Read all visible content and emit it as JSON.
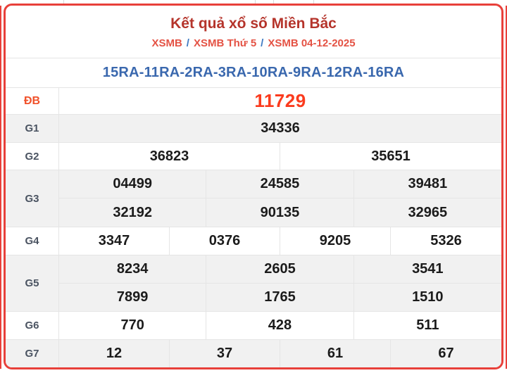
{
  "header": {
    "title": "Kết quả xổ số Miền Bắc",
    "breadcrumb": [
      {
        "label": "XSMB"
      },
      {
        "label": "XSMB Thứ 5"
      },
      {
        "label": "XSMB 04-12-2025"
      }
    ],
    "separator": "/"
  },
  "signs_line": "15RA-11RA-2RA-3RA-10RA-9RA-12RA-16RA",
  "results": {
    "rows": [
      {
        "label": "ĐB",
        "special": true,
        "shaded": false,
        "prizes": [
          [
            "11729"
          ]
        ]
      },
      {
        "label": "G1",
        "special": false,
        "shaded": true,
        "prizes": [
          [
            "34336"
          ]
        ]
      },
      {
        "label": "G2",
        "special": false,
        "shaded": false,
        "prizes": [
          [
            "36823",
            "35651"
          ]
        ]
      },
      {
        "label": "G3",
        "special": false,
        "shaded": true,
        "prizes": [
          [
            "04499",
            "24585",
            "39481"
          ],
          [
            "32192",
            "90135",
            "32965"
          ]
        ]
      },
      {
        "label": "G4",
        "special": false,
        "shaded": false,
        "prizes": [
          [
            "3347",
            "0376",
            "9205",
            "5326"
          ]
        ]
      },
      {
        "label": "G5",
        "special": false,
        "shaded": true,
        "prizes": [
          [
            "8234",
            "2605",
            "3541"
          ],
          [
            "7899",
            "1765",
            "1510"
          ]
        ]
      },
      {
        "label": "G6",
        "special": false,
        "shaded": false,
        "prizes": [
          [
            "770",
            "428",
            "511"
          ]
        ]
      },
      {
        "label": "G7",
        "special": false,
        "shaded": true,
        "prizes": [
          [
            "12",
            "37",
            "61",
            "67"
          ]
        ]
      }
    ]
  },
  "colors": {
    "border-red": "#e8403a",
    "title-red": "#b5342b",
    "crumb-red": "#e45244",
    "crumb-slash": "#3d79c2",
    "signs-blue": "#3a68ae",
    "special-red": "#fb3b1e",
    "label-gray": "#4a5361",
    "number-black": "#1b1b1b",
    "row-shade": "#f1f1f1",
    "divider": "#e5e5e5"
  }
}
